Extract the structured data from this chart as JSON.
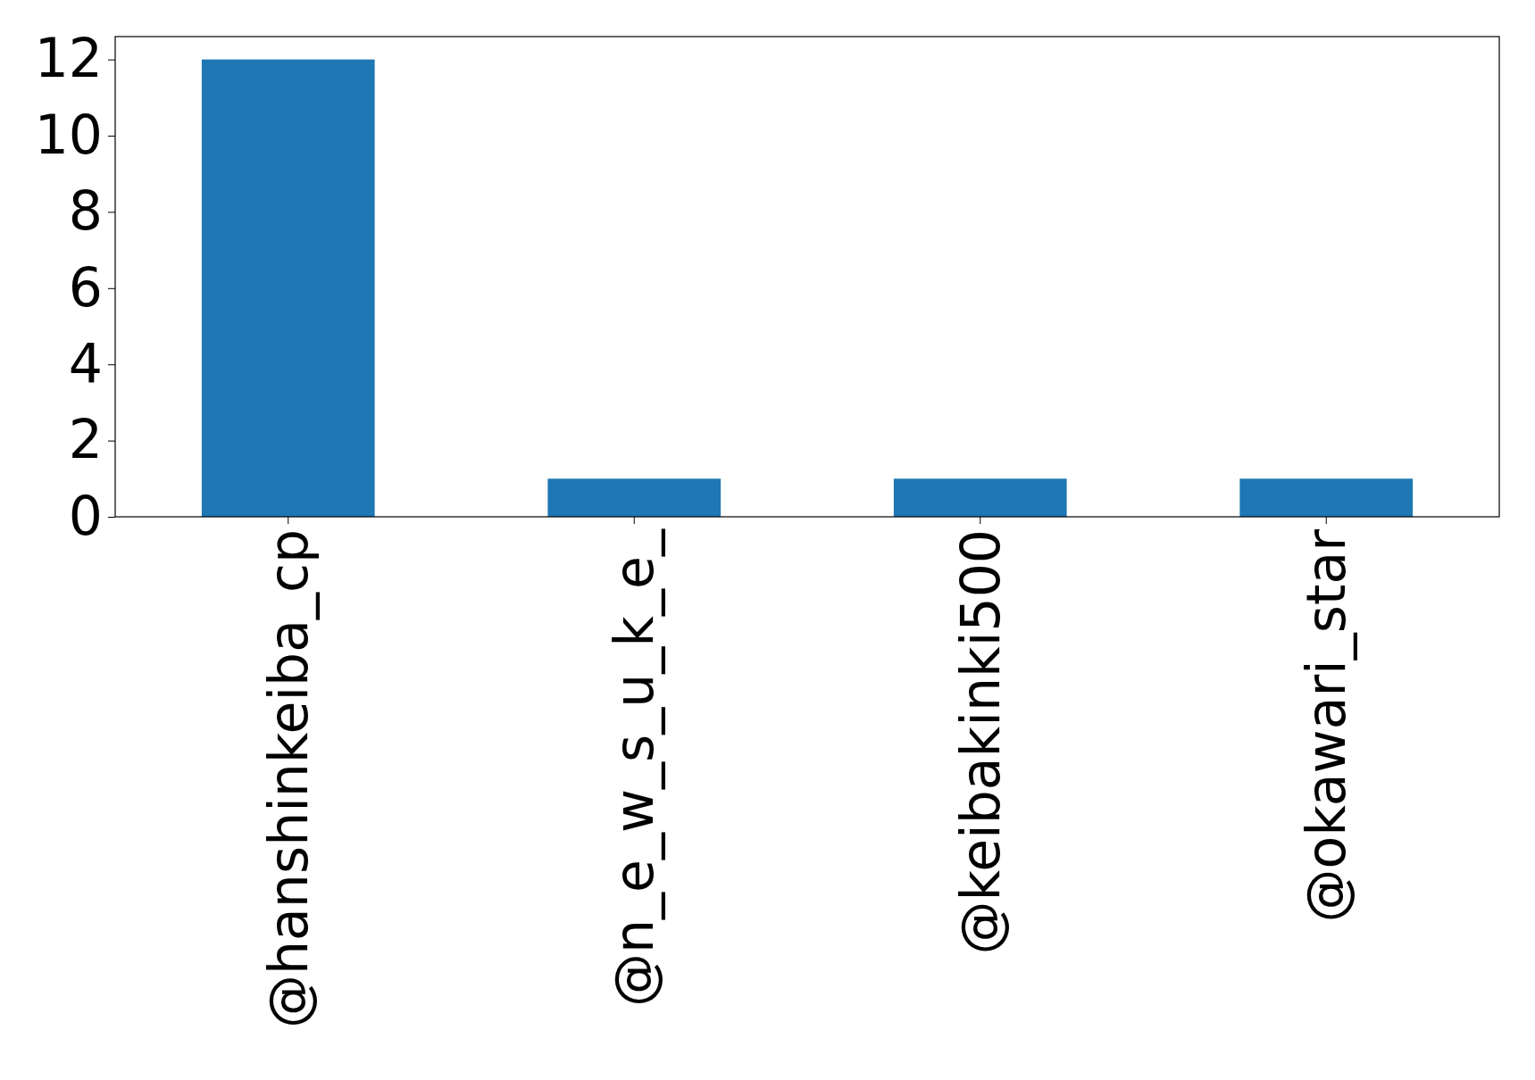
{
  "chart_data": {
    "type": "bar",
    "categories": [
      "@hanshinkeiba_cp",
      "@n_e_w_s_u_k_e_",
      "@keibakinki500",
      "@okawari_star"
    ],
    "values": [
      12,
      1,
      1,
      1
    ],
    "color": "#1f77b4",
    "ylim": [
      0,
      12.6
    ],
    "yticks": [
      0,
      2,
      4,
      6,
      8,
      10,
      12
    ]
  }
}
